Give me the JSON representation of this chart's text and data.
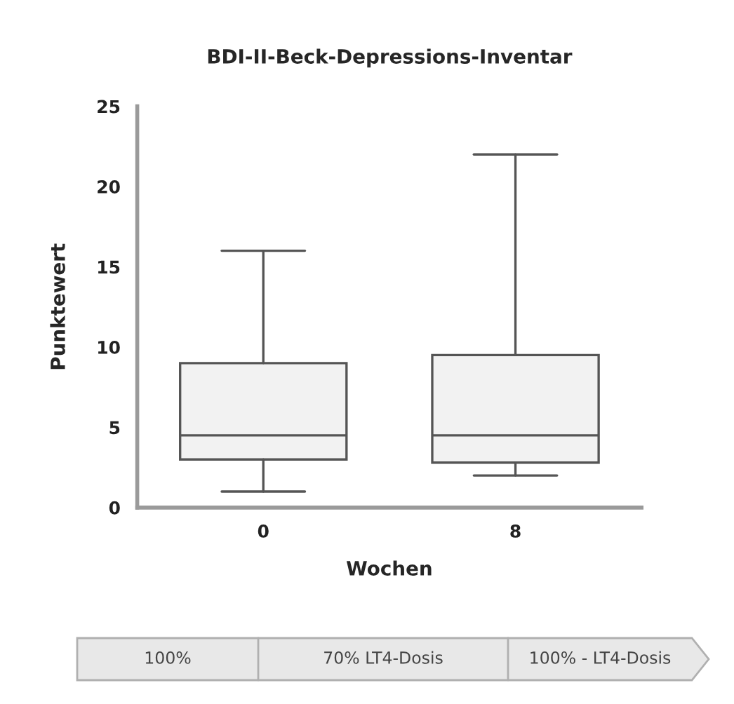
{
  "chart_data": {
    "type": "box",
    "title": "BDI-II-Beck-Depressions-Inventar",
    "xlabel": "Wochen",
    "ylabel": "Punktewert",
    "categories": [
      "0",
      "8"
    ],
    "boxes": [
      {
        "low": 1,
        "q1": 3,
        "median": 4.5,
        "q3": 9,
        "high": 16
      },
      {
        "low": 2,
        "q1": 2.8,
        "median": 4.5,
        "q3": 9.5,
        "high": 22
      }
    ],
    "color": "#f2f2f2",
    "ylim": [
      0,
      25
    ],
    "yticks": [
      0,
      5,
      10,
      15,
      20,
      25
    ],
    "grid": false,
    "annotations": [
      "100%",
      "70% LT4-Dosis",
      "100% - LT4-Dosis"
    ]
  }
}
